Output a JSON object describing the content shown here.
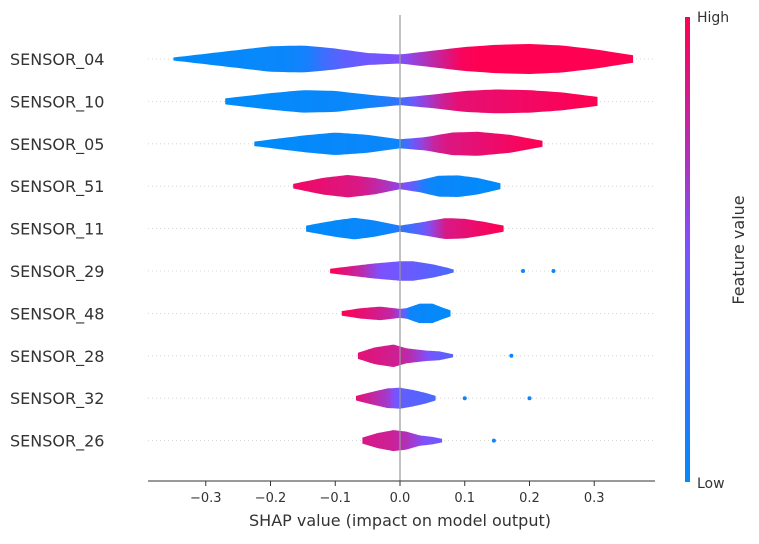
{
  "chart_data": {
    "type": "violin",
    "xlabel": "SHAP value (impact on model output)",
    "xlim": [
      -0.385,
      0.39
    ],
    "xticks": [
      -0.3,
      -0.2,
      -0.1,
      0.0,
      0.1,
      0.2,
      0.3
    ],
    "xtick_labels": [
      "−0.3",
      "−0.2",
      "−0.1",
      "0.0",
      "0.1",
      "0.2",
      "0.3"
    ],
    "features": [
      {
        "name": "SENSOR_04",
        "min": -0.35,
        "max": 0.36,
        "density": [
          [
            -0.35,
            0.1
          ],
          [
            -0.3,
            0.35
          ],
          [
            -0.25,
            0.6
          ],
          [
            -0.2,
            0.85
          ],
          [
            -0.15,
            0.9
          ],
          [
            -0.1,
            0.7
          ],
          [
            -0.05,
            0.4
          ],
          [
            0.0,
            0.3
          ],
          [
            0.05,
            0.55
          ],
          [
            0.1,
            0.8
          ],
          [
            0.15,
            0.95
          ],
          [
            0.2,
            1.0
          ],
          [
            0.25,
            0.9
          ],
          [
            0.3,
            0.65
          ],
          [
            0.36,
            0.25
          ]
        ],
        "color": [
          [
            -0.35,
            0
          ],
          [
            -0.15,
            0.05
          ],
          [
            -0.1,
            0.35
          ],
          [
            -0.05,
            0.45
          ],
          [
            0.0,
            0.5
          ],
          [
            0.05,
            0.75
          ],
          [
            0.1,
            1
          ],
          [
            0.36,
            1
          ]
        ]
      },
      {
        "name": "SENSOR_10",
        "min": -0.27,
        "max": 0.305,
        "density": [
          [
            -0.27,
            0.2
          ],
          [
            -0.2,
            0.55
          ],
          [
            -0.15,
            0.75
          ],
          [
            -0.1,
            0.7
          ],
          [
            -0.05,
            0.45
          ],
          [
            0.0,
            0.25
          ],
          [
            0.05,
            0.45
          ],
          [
            0.1,
            0.7
          ],
          [
            0.15,
            0.8
          ],
          [
            0.2,
            0.75
          ],
          [
            0.25,
            0.6
          ],
          [
            0.305,
            0.3
          ]
        ],
        "color": [
          [
            -0.27,
            0
          ],
          [
            -0.05,
            0.05
          ],
          [
            0.0,
            0.2
          ],
          [
            0.03,
            0.55
          ],
          [
            0.08,
            0.9
          ],
          [
            0.305,
            1
          ]
        ]
      },
      {
        "name": "SENSOR_05",
        "min": -0.225,
        "max": 0.22,
        "density": [
          [
            -0.225,
            0.15
          ],
          [
            -0.15,
            0.55
          ],
          [
            -0.1,
            0.75
          ],
          [
            -0.05,
            0.6
          ],
          [
            0.0,
            0.3
          ],
          [
            0.04,
            0.45
          ],
          [
            0.08,
            0.75
          ],
          [
            0.12,
            0.8
          ],
          [
            0.17,
            0.6
          ],
          [
            0.22,
            0.2
          ]
        ],
        "color": [
          [
            -0.225,
            0
          ],
          [
            0.0,
            0.05
          ],
          [
            0.02,
            0.45
          ],
          [
            0.06,
            0.85
          ],
          [
            0.22,
            1
          ]
        ]
      },
      {
        "name": "SENSOR_51",
        "min": -0.165,
        "max": 0.155,
        "density": [
          [
            -0.165,
            0.15
          ],
          [
            -0.12,
            0.55
          ],
          [
            -0.08,
            0.75
          ],
          [
            -0.04,
            0.55
          ],
          [
            0.0,
            0.2
          ],
          [
            0.03,
            0.4
          ],
          [
            0.06,
            0.7
          ],
          [
            0.09,
            0.72
          ],
          [
            0.12,
            0.55
          ],
          [
            0.155,
            0.2
          ]
        ],
        "color": [
          [
            -0.165,
            0.95
          ],
          [
            -0.06,
            0.85
          ],
          [
            -0.01,
            0.65
          ],
          [
            0.02,
            0.4
          ],
          [
            0.04,
            0.05
          ],
          [
            0.155,
            0
          ]
        ]
      },
      {
        "name": "SENSOR_11",
        "min": -0.145,
        "max": 0.16,
        "density": [
          [
            -0.145,
            0.2
          ],
          [
            -0.1,
            0.55
          ],
          [
            -0.07,
            0.72
          ],
          [
            -0.04,
            0.55
          ],
          [
            0.0,
            0.2
          ],
          [
            0.03,
            0.4
          ],
          [
            0.07,
            0.7
          ],
          [
            0.1,
            0.65
          ],
          [
            0.13,
            0.45
          ],
          [
            0.16,
            0.2
          ]
        ],
        "color": [
          [
            -0.145,
            0
          ],
          [
            -0.02,
            0.05
          ],
          [
            0.03,
            0.35
          ],
          [
            0.07,
            0.85
          ],
          [
            0.16,
            1
          ]
        ]
      },
      {
        "name": "SENSOR_29",
        "min": -0.108,
        "max": 0.083,
        "density": [
          [
            -0.108,
            0.15
          ],
          [
            -0.07,
            0.35
          ],
          [
            -0.04,
            0.5
          ],
          [
            0.0,
            0.65
          ],
          [
            0.02,
            0.65
          ],
          [
            0.05,
            0.45
          ],
          [
            0.07,
            0.25
          ],
          [
            0.083,
            0.1
          ]
        ],
        "color": [
          [
            -0.108,
            1
          ],
          [
            -0.06,
            0.75
          ],
          [
            -0.03,
            0.5
          ],
          [
            0.0,
            0.45
          ],
          [
            0.083,
            0.3
          ]
        ],
        "outliers": [
          [
            0.19,
            0.05
          ],
          [
            0.237,
            0.05
          ]
        ]
      },
      {
        "name": "SENSOR_48",
        "min": -0.09,
        "max": 0.078,
        "density": [
          [
            -0.09,
            0.15
          ],
          [
            -0.06,
            0.35
          ],
          [
            -0.03,
            0.45
          ],
          [
            0.0,
            0.3
          ],
          [
            0.01,
            0.35
          ],
          [
            0.03,
            0.65
          ],
          [
            0.05,
            0.65
          ],
          [
            0.065,
            0.4
          ],
          [
            0.078,
            0.2
          ]
        ],
        "color": [
          [
            -0.09,
            1
          ],
          [
            -0.04,
            0.85
          ],
          [
            -0.01,
            0.75
          ],
          [
            0.005,
            0.45
          ],
          [
            0.015,
            0.05
          ],
          [
            0.078,
            0
          ]
        ]
      },
      {
        "name": "SENSOR_28",
        "min": -0.065,
        "max": 0.082,
        "density": [
          [
            -0.065,
            0.2
          ],
          [
            -0.04,
            0.55
          ],
          [
            -0.01,
            0.75
          ],
          [
            0.01,
            0.5
          ],
          [
            0.04,
            0.35
          ],
          [
            0.06,
            0.3
          ],
          [
            0.082,
            0.1
          ]
        ],
        "color": [
          [
            -0.065,
            0.9
          ],
          [
            0.0,
            0.8
          ],
          [
            0.02,
            0.7
          ],
          [
            0.05,
            0.45
          ],
          [
            0.082,
            0.35
          ]
        ],
        "outliers": [
          [
            0.172,
            0.05
          ]
        ]
      },
      {
        "name": "SENSOR_32",
        "min": -0.068,
        "max": 0.055,
        "density": [
          [
            -0.068,
            0.15
          ],
          [
            -0.045,
            0.4
          ],
          [
            -0.02,
            0.65
          ],
          [
            0.0,
            0.7
          ],
          [
            0.02,
            0.55
          ],
          [
            0.04,
            0.35
          ],
          [
            0.055,
            0.15
          ]
        ],
        "color": [
          [
            -0.068,
            0.9
          ],
          [
            -0.02,
            0.65
          ],
          [
            0.0,
            0.4
          ],
          [
            0.03,
            0.35
          ],
          [
            0.055,
            0.3
          ]
        ],
        "outliers": [
          [
            0.1,
            0.05
          ],
          [
            0.2,
            0.05
          ]
        ]
      },
      {
        "name": "SENSOR_26",
        "min": -0.058,
        "max": 0.065,
        "density": [
          [
            -0.058,
            0.2
          ],
          [
            -0.035,
            0.5
          ],
          [
            -0.01,
            0.7
          ],
          [
            0.01,
            0.6
          ],
          [
            0.03,
            0.35
          ],
          [
            0.05,
            0.25
          ],
          [
            0.065,
            0.12
          ]
        ],
        "color": [
          [
            -0.058,
            0.85
          ],
          [
            -0.01,
            0.8
          ],
          [
            0.01,
            0.7
          ],
          [
            0.04,
            0.5
          ],
          [
            0.065,
            0.45
          ]
        ],
        "outliers": [
          [
            0.145,
            0.05
          ]
        ]
      }
    ],
    "colorbar": {
      "label": "Feature value",
      "high_label": "High",
      "low_label": "Low",
      "low_color": "#008bfb",
      "mid_color": "#7c52ff",
      "high_color": "#ff0052"
    }
  }
}
